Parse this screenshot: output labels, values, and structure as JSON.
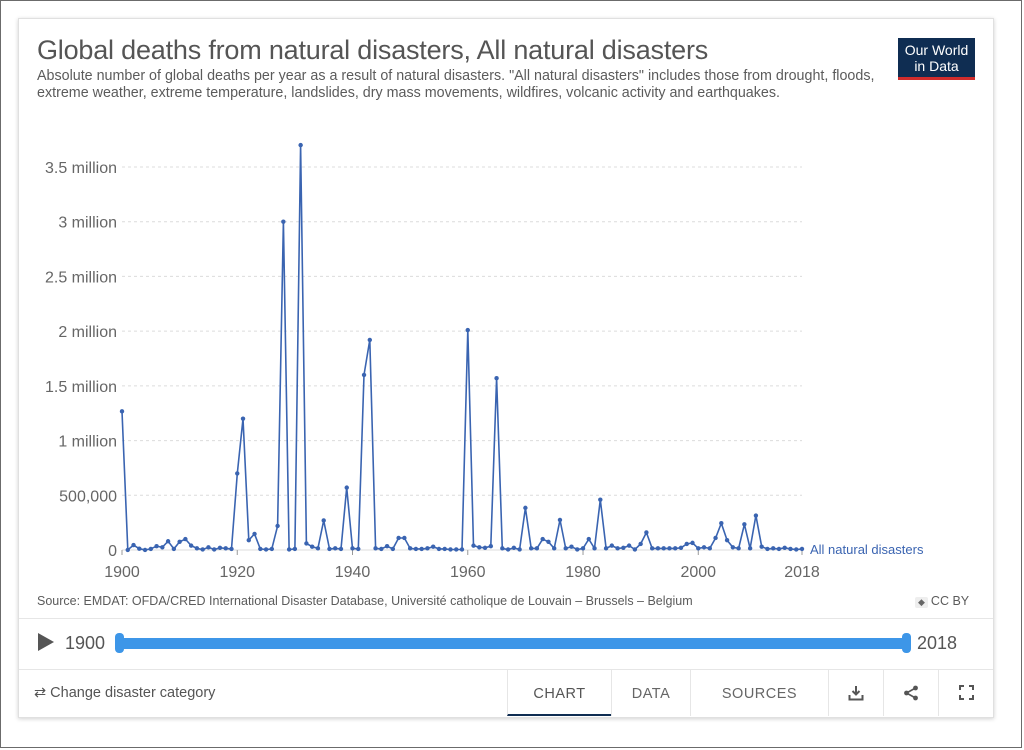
{
  "header": {
    "title": "Global deaths from natural disasters, All natural disasters",
    "subtitle": "Absolute number of global deaths per year as a result of natural disasters. \"All natural disasters\" includes those from drought, floods, extreme weather, extreme temperature, landslides, dry mass movements, wildfires, volcanic activity and earthquakes.",
    "logo_line1": "Our World",
    "logo_line2": "in Data"
  },
  "chart_data": {
    "type": "line",
    "title": "Global deaths from natural disasters, All natural disasters",
    "series_name": "All natural disasters",
    "xlim": [
      1900,
      2018
    ],
    "ylim": [
      0,
      3500000
    ],
    "y_ticks": [
      0,
      500000,
      1000000,
      1500000,
      2000000,
      2500000,
      3000000,
      3500000
    ],
    "y_tick_labels": [
      "0",
      "500,000",
      "1 million",
      "1.5 million",
      "2 million",
      "2.5 million",
      "3 million",
      "3.5 million"
    ],
    "x_ticks": [
      1900,
      1920,
      1940,
      1960,
      1980,
      2000,
      2018
    ],
    "x_tick_labels": [
      "1900",
      "1920",
      "1940",
      "1960",
      "1980",
      "2000",
      "2018"
    ],
    "grid": "horizontal dashed",
    "color": "#3a64b1",
    "x": [
      1900,
      1901,
      1902,
      1903,
      1904,
      1905,
      1906,
      1907,
      1908,
      1909,
      1910,
      1911,
      1912,
      1913,
      1914,
      1915,
      1916,
      1917,
      1918,
      1919,
      1920,
      1921,
      1922,
      1923,
      1924,
      1925,
      1926,
      1927,
      1928,
      1929,
      1930,
      1931,
      1932,
      1933,
      1934,
      1935,
      1936,
      1937,
      1938,
      1939,
      1940,
      1941,
      1942,
      1943,
      1944,
      1945,
      1946,
      1947,
      1948,
      1949,
      1950,
      1951,
      1952,
      1953,
      1954,
      1955,
      1956,
      1957,
      1958,
      1959,
      1960,
      1961,
      1962,
      1963,
      1964,
      1965,
      1966,
      1967,
      1968,
      1969,
      1970,
      1971,
      1972,
      1973,
      1974,
      1975,
      1976,
      1977,
      1978,
      1979,
      1980,
      1981,
      1982,
      1983,
      1984,
      1985,
      1986,
      1987,
      1988,
      1989,
      1990,
      1991,
      1992,
      1993,
      1994,
      1995,
      1996,
      1997,
      1998,
      1999,
      2000,
      2001,
      2002,
      2003,
      2004,
      2005,
      2006,
      2007,
      2008,
      2009,
      2010,
      2011,
      2012,
      2013,
      2014,
      2015,
      2016,
      2017,
      2018
    ],
    "y": [
      1267000,
      1000,
      45000,
      12000,
      1000,
      10000,
      35000,
      25000,
      80000,
      10000,
      75000,
      100000,
      40000,
      15000,
      5000,
      25000,
      5000,
      20000,
      15000,
      10000,
      700000,
      1200000,
      90000,
      147000,
      10000,
      5000,
      10000,
      220000,
      3000000,
      5000,
      10000,
      3700000,
      60000,
      30000,
      15000,
      270000,
      10000,
      15000,
      10000,
      570000,
      15000,
      10000,
      1600000,
      1920000,
      15000,
      10000,
      35000,
      10000,
      110000,
      110000,
      15000,
      10000,
      10000,
      15000,
      30000,
      10000,
      10000,
      5000,
      5000,
      5000,
      2010000,
      40000,
      25000,
      20000,
      35000,
      1570000,
      15000,
      5000,
      20000,
      5000,
      385000,
      15000,
      15000,
      100000,
      75000,
      15000,
      275000,
      15000,
      30000,
      5000,
      15000,
      100000,
      15000,
      460000,
      15000,
      40000,
      15000,
      20000,
      40000,
      5000,
      55000,
      160000,
      15000,
      15000,
      15000,
      15000,
      15000,
      20000,
      55000,
      65000,
      15000,
      25000,
      15000,
      110000,
      245000,
      90000,
      25000,
      15000,
      235000,
      15000,
      315000,
      30000,
      10000,
      15000,
      10000,
      20000,
      10000,
      5000,
      10000
    ]
  },
  "footer": {
    "source": "Source: EMDAT: OFDA/CRED International Disaster Database, Université catholique de Louvain – Brussels – Belgium",
    "license_arrows": "◆",
    "license": "CC BY",
    "timeline_start": "1900",
    "timeline_end": "2018",
    "timeline_range": [
      1900,
      2018
    ],
    "change_label": "⇄ Change disaster category",
    "tabs": [
      "CHART",
      "DATA",
      "SOURCES"
    ],
    "active_tab": "CHART",
    "icons": [
      "download-icon",
      "share-icon",
      "fullscreen-icon"
    ]
  }
}
